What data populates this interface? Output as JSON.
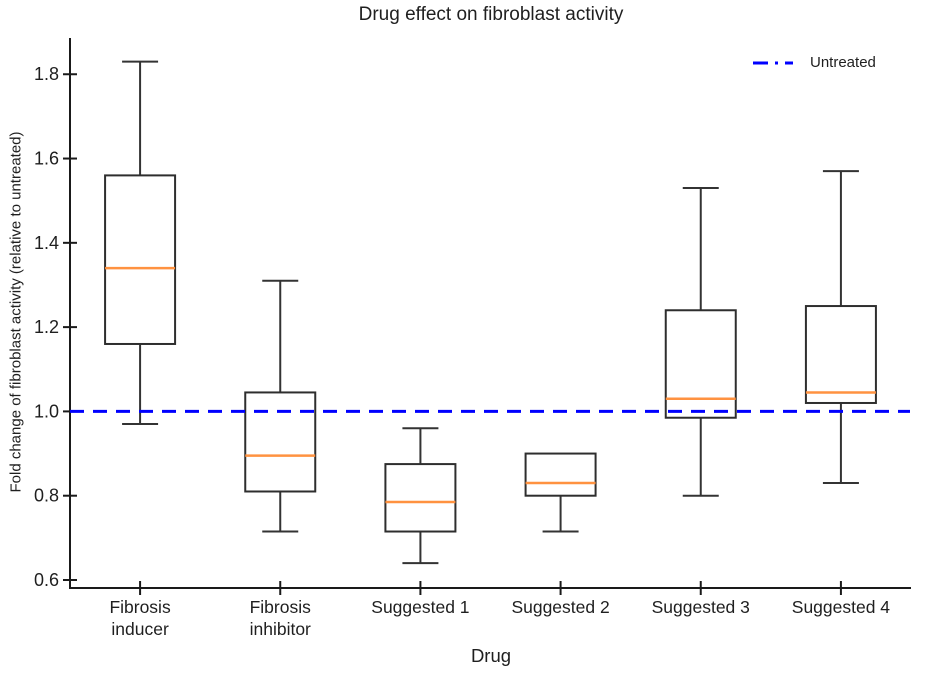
{
  "chart_data": {
    "type": "boxplot",
    "title": "Drug effect on fibroblast activity",
    "xlabel": "Drug",
    "ylabel": "Fold change of fibroblast activity (relative to untreated)",
    "ylim": [
      0.581,
      1.886
    ],
    "yticks": [
      0.6,
      0.8,
      1.0,
      1.2,
      1.4,
      1.6,
      1.8
    ],
    "grid": false,
    "legend": {
      "label": "Untreated",
      "position": "upper-right",
      "line_style": "dash-dot-sample",
      "line_color": "#0000ff"
    },
    "reference_line": {
      "y": 1.0,
      "style": "dashed",
      "color": "#0000ff",
      "label": "Untreated"
    },
    "categories": [
      "Fibrosis inducer",
      "Fibrosis inhibitor",
      "Suggested 1",
      "Suggested 2",
      "Suggested 3",
      "Suggested 4"
    ],
    "category_label_lines": [
      [
        "Fibrosis",
        "inducer"
      ],
      [
        "Fibrosis",
        "inhibitor"
      ],
      [
        "Suggested 1"
      ],
      [
        "Suggested 2"
      ],
      [
        "Suggested 3"
      ],
      [
        "Suggested 4"
      ]
    ],
    "series": [
      {
        "name": "Fibrosis inducer",
        "whisker_low": 0.97,
        "q1": 1.16,
        "median": 1.34,
        "q3": 1.56,
        "whisker_high": 1.83
      },
      {
        "name": "Fibrosis inhibitor",
        "whisker_low": 0.715,
        "q1": 0.81,
        "median": 0.895,
        "q3": 1.045,
        "whisker_high": 1.31
      },
      {
        "name": "Suggested 1",
        "whisker_low": 0.64,
        "q1": 0.715,
        "median": 0.785,
        "q3": 0.875,
        "whisker_high": 0.96
      },
      {
        "name": "Suggested 2",
        "whisker_low": 0.715,
        "q1": 0.8,
        "median": 0.83,
        "q3": 0.9,
        "whisker_high": 0.9
      },
      {
        "name": "Suggested 3",
        "whisker_low": 0.8,
        "q1": 0.985,
        "median": 1.03,
        "q3": 1.24,
        "whisker_high": 1.53
      },
      {
        "name": "Suggested 4",
        "whisker_low": 0.83,
        "q1": 1.02,
        "median": 1.045,
        "q3": 1.25,
        "whisker_high": 1.57
      }
    ],
    "colors": {
      "box_edge": "#2e2e2e",
      "whisker": "#333333",
      "median": "#ff9240",
      "reference": "#0000ff",
      "axis": "#1a1a1a",
      "text": "#1f1f1f",
      "background": "#ffffff"
    }
  }
}
